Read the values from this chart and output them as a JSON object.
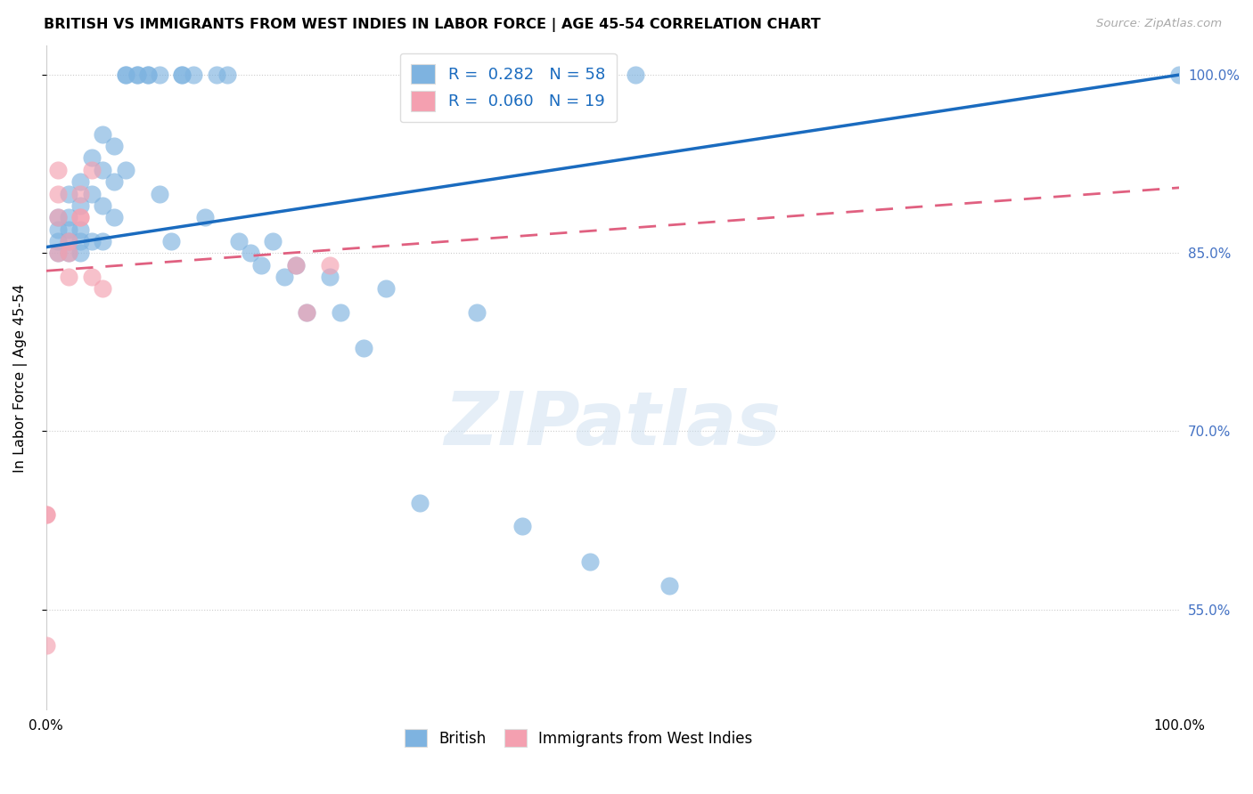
{
  "title": "BRITISH VS IMMIGRANTS FROM WEST INDIES IN LABOR FORCE | AGE 45-54 CORRELATION CHART",
  "source": "Source: ZipAtlas.com",
  "ylabel": "In Labor Force | Age 45-54",
  "xlim": [
    0.0,
    1.0
  ],
  "ylim": [
    0.465,
    1.025
  ],
  "yticks": [
    0.55,
    0.7,
    0.85,
    1.0
  ],
  "ytick_labels": [
    "55.0%",
    "70.0%",
    "85.0%",
    "100.0%"
  ],
  "xticks": [
    0.0,
    0.1,
    0.2,
    0.3,
    0.4,
    0.5,
    0.6,
    0.7,
    0.8,
    0.9,
    1.0
  ],
  "british_color": "#7eb3e0",
  "wi_color": "#f4a0b0",
  "british_line_color": "#1a6bbf",
  "wi_line_color": "#e06080",
  "R_british": 0.282,
  "N_british": 58,
  "R_wi": 0.06,
  "N_wi": 19,
  "legend_label_british": "British",
  "legend_label_wi": "Immigrants from West Indies",
  "watermark": "ZIPatlas",
  "british_x": [
    0.01,
    0.01,
    0.01,
    0.01,
    0.02,
    0.02,
    0.02,
    0.02,
    0.02,
    0.03,
    0.03,
    0.03,
    0.03,
    0.03,
    0.04,
    0.04,
    0.04,
    0.05,
    0.05,
    0.05,
    0.05,
    0.06,
    0.06,
    0.06,
    0.07,
    0.07,
    0.07,
    0.08,
    0.08,
    0.09,
    0.09,
    0.1,
    0.1,
    0.11,
    0.12,
    0.12,
    0.13,
    0.14,
    0.15,
    0.16,
    0.17,
    0.18,
    0.19,
    0.2,
    0.21,
    0.22,
    0.23,
    0.25,
    0.26,
    0.28,
    0.3,
    0.33,
    0.38,
    0.42,
    0.48,
    0.52,
    0.55,
    1.0
  ],
  "british_y": [
    0.88,
    0.87,
    0.86,
    0.85,
    0.9,
    0.88,
    0.87,
    0.86,
    0.85,
    0.91,
    0.89,
    0.87,
    0.86,
    0.85,
    0.93,
    0.9,
    0.86,
    0.95,
    0.92,
    0.89,
    0.86,
    0.94,
    0.91,
    0.88,
    1.0,
    1.0,
    0.92,
    1.0,
    1.0,
    1.0,
    1.0,
    1.0,
    0.9,
    0.86,
    1.0,
    1.0,
    1.0,
    0.88,
    1.0,
    1.0,
    0.86,
    0.85,
    0.84,
    0.86,
    0.83,
    0.84,
    0.8,
    0.83,
    0.8,
    0.77,
    0.82,
    0.64,
    0.8,
    0.62,
    0.59,
    1.0,
    0.57,
    1.0
  ],
  "wi_x": [
    0.0,
    0.0,
    0.0,
    0.01,
    0.01,
    0.01,
    0.01,
    0.02,
    0.02,
    0.02,
    0.03,
    0.03,
    0.03,
    0.04,
    0.04,
    0.05,
    0.22,
    0.23,
    0.25
  ],
  "wi_y": [
    0.52,
    0.63,
    0.63,
    0.92,
    0.9,
    0.88,
    0.85,
    0.86,
    0.85,
    0.83,
    0.9,
    0.88,
    0.88,
    0.92,
    0.83,
    0.82,
    0.84,
    0.8,
    0.84
  ]
}
